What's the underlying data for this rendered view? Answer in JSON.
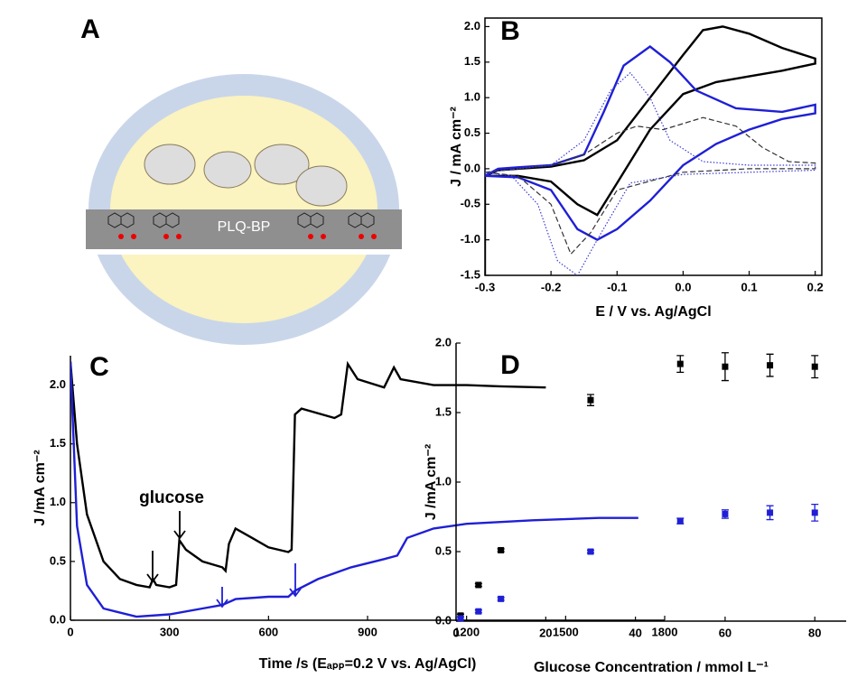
{
  "panel_a": {
    "label": "A",
    "layer_label": "PLQ-BP"
  },
  "chart_data": [
    {
      "type": "line",
      "title": "B",
      "x_label": "E / V vs. Ag/AgCl",
      "y_label": "J / mA cm⁻²",
      "xlim": [
        -0.3,
        0.21
      ],
      "ylim": [
        -1.5,
        2.12
      ],
      "xticks": [
        -0.3,
        -0.2,
        -0.1,
        {
          "value": 0,
          "label": "0.0"
        },
        0.1,
        0.2
      ],
      "yticks": [
        -1.5,
        {
          "value": -1,
          "label": "-1.0"
        },
        -0.5,
        {
          "value": 0,
          "label": "0.0"
        },
        0.5,
        {
          "value": 1,
          "label": "1.0"
        },
        1.5,
        {
          "value": 2,
          "label": "2.0"
        }
      ],
      "frame": "box",
      "series": [
        {
          "color": "#000000",
          "linestyle": "solid",
          "x": [
            -0.3,
            -0.3,
            -0.28,
            -0.25,
            -0.2,
            -0.15,
            -0.1,
            -0.05,
            0,
            0.03,
            0.06,
            0.1,
            0.15,
            0.2,
            0.2,
            0.15,
            0.1,
            0.05,
            0,
            -0.05,
            -0.1,
            -0.13,
            -0.16,
            -0.2,
            -0.25,
            -0.3
          ],
          "values": [
            -1.5,
            -0.1,
            -0.02,
            0.0,
            0.03,
            0.12,
            0.4,
            1.0,
            1.6,
            1.95,
            2.0,
            1.9,
            1.7,
            1.55,
            1.48,
            1.38,
            1.3,
            1.22,
            1.05,
            0.55,
            -0.2,
            -0.65,
            -0.5,
            -0.18,
            -0.1,
            -0.1
          ]
        },
        {
          "color": "#1f1fd6",
          "linestyle": "solid",
          "x": [
            -0.3,
            -0.28,
            -0.25,
            -0.2,
            -0.15,
            -0.12,
            -0.09,
            -0.05,
            -0.02,
            0.02,
            0.08,
            0.15,
            0.2,
            0.2,
            0.15,
            0.1,
            0.05,
            0,
            -0.05,
            -0.1,
            -0.13,
            -0.16,
            -0.2,
            -0.25,
            -0.3
          ],
          "values": [
            -0.1,
            0.0,
            0.02,
            0.05,
            0.2,
            0.8,
            1.45,
            1.72,
            1.5,
            1.1,
            0.85,
            0.8,
            0.9,
            0.78,
            0.7,
            0.55,
            0.35,
            0.05,
            -0.45,
            -0.85,
            -1.0,
            -0.85,
            -0.3,
            -0.12,
            -0.1
          ]
        },
        {
          "color": "#333333",
          "linestyle": "dashed",
          "x": [
            -0.3,
            -0.25,
            -0.2,
            -0.15,
            -0.1,
            -0.07,
            -0.03,
            0.03,
            0.08,
            0.12,
            0.16,
            0.2,
            0.2,
            0.1,
            0,
            -0.1,
            -0.14,
            -0.17,
            -0.2,
            -0.25,
            -0.3
          ],
          "values": [
            -0.05,
            0.0,
            0.05,
            0.2,
            0.5,
            0.6,
            0.55,
            0.72,
            0.6,
            0.3,
            0.1,
            0.08,
            0.0,
            0.0,
            -0.05,
            -0.3,
            -0.9,
            -1.2,
            -0.5,
            -0.1,
            -0.05
          ]
        },
        {
          "color": "#3a3ad6",
          "linestyle": "dotted",
          "x": [
            -0.3,
            -0.25,
            -0.2,
            -0.15,
            -0.11,
            -0.08,
            -0.05,
            -0.02,
            0.03,
            0.1,
            0.2,
            0.2,
            0.1,
            0,
            -0.08,
            -0.13,
            -0.16,
            -0.19,
            -0.22,
            -0.26,
            -0.3
          ],
          "values": [
            -0.05,
            0.0,
            0.05,
            0.4,
            1.1,
            1.35,
            1.0,
            0.4,
            0.1,
            0.05,
            0.05,
            -0.02,
            -0.05,
            -0.08,
            -0.2,
            -1.0,
            -1.5,
            -1.3,
            -0.5,
            -0.1,
            -0.05
          ]
        }
      ]
    },
    {
      "type": "line",
      "title": "C",
      "x_label": "Time /s (Eₐₚₚ=0.2 V vs. Ag/AgCl)",
      "y_label": "J /mA cm⁻²",
      "annotation": "glucose",
      "xlim": [
        0,
        1800
      ],
      "ylim": [
        0,
        2.25
      ],
      "xticks": [
        0,
        300,
        600,
        900,
        1200,
        1500,
        1800
      ],
      "yticks": [
        {
          "value": 0,
          "label": "0.0"
        },
        0.5,
        {
          "value": 1,
          "label": "1.0"
        },
        1.5,
        {
          "value": 2,
          "label": "2.0"
        }
      ],
      "frame": "axes",
      "series": [
        {
          "color": "#000000",
          "linestyle": "solid",
          "x": [
            0,
            20,
            50,
            100,
            150,
            200,
            240,
            250,
            260,
            300,
            320,
            330,
            350,
            400,
            460,
            470,
            480,
            500,
            550,
            600,
            660,
            670,
            680,
            700,
            800,
            820,
            840,
            870,
            950,
            980,
            1000,
            1100,
            1200,
            1300,
            1440
          ],
          "values": [
            2.2,
            1.5,
            0.9,
            0.5,
            0.35,
            0.3,
            0.28,
            0.35,
            0.3,
            0.28,
            0.3,
            0.68,
            0.6,
            0.5,
            0.45,
            0.42,
            0.65,
            0.78,
            0.7,
            0.62,
            0.58,
            0.6,
            1.75,
            1.8,
            1.72,
            1.75,
            2.18,
            2.05,
            1.98,
            2.15,
            2.05,
            2.0,
            2.0,
            1.99,
            1.98
          ]
        },
        {
          "color": "#1f1fd6",
          "linestyle": "solid",
          "x": [
            0,
            20,
            50,
            100,
            200,
            300,
            400,
            460,
            500,
            600,
            660,
            680,
            750,
            850,
            950,
            990,
            1000,
            1020,
            1100,
            1200,
            1400,
            1600,
            1720
          ],
          "values": [
            2.2,
            0.8,
            0.3,
            0.1,
            0.03,
            0.05,
            0.1,
            0.13,
            0.18,
            0.2,
            0.2,
            0.25,
            0.35,
            0.45,
            0.52,
            0.55,
            0.6,
            0.7,
            0.78,
            0.82,
            0.85,
            0.87,
            0.87
          ]
        }
      ]
    },
    {
      "type": "scatter",
      "title": "D",
      "x_label": "Glucose Concentration / mmol L⁻¹",
      "y_label": "J /mA cm⁻²",
      "xlim": [
        0,
        87
      ],
      "ylim": [
        0,
        2
      ],
      "xticks": [
        0,
        20,
        40,
        60,
        80
      ],
      "yticks": [
        {
          "value": 0,
          "label": "0.0"
        },
        0.5,
        {
          "value": 1,
          "label": "1.0"
        },
        1.5,
        {
          "value": 2,
          "label": "2.0"
        }
      ],
      "frame": "axes",
      "x": [
        1,
        5,
        10,
        30,
        50,
        60,
        70,
        80
      ],
      "series": [
        {
          "color": "#000000",
          "values": [
            0.04,
            0.26,
            0.51,
            1.59,
            1.85,
            1.83,
            1.84,
            1.83
          ],
          "errors": [
            0.01,
            0.01,
            0.01,
            0.04,
            0.06,
            0.1,
            0.08,
            0.08
          ]
        },
        {
          "color": "#1f1fd6",
          "values": [
            0.02,
            0.07,
            0.16,
            0.5,
            0.72,
            0.77,
            0.78,
            0.78
          ],
          "errors": [
            0.01,
            0.01,
            0.01,
            0.01,
            0.02,
            0.03,
            0.05,
            0.06
          ]
        }
      ]
    }
  ]
}
